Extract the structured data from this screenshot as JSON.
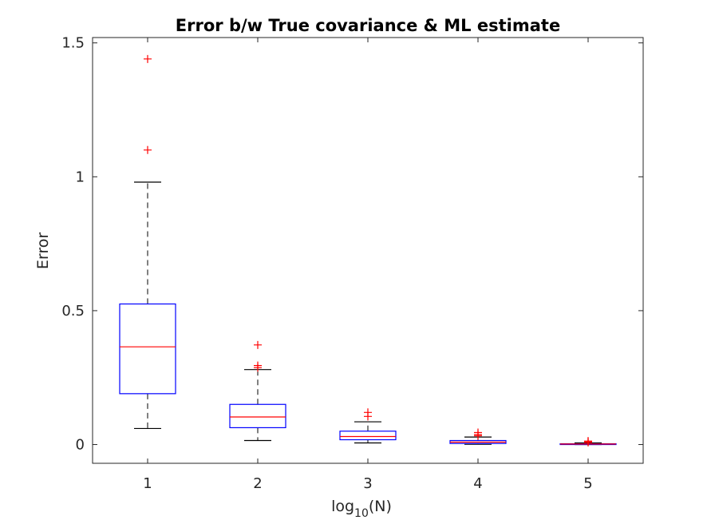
{
  "chart_data": {
    "type": "box",
    "title": "Error b/w True covariance & ML estimate",
    "xlabel": {
      "base": "log",
      "sub": "10",
      "tail": "(N)"
    },
    "ylabel": "Error",
    "xlim": [
      0.5,
      5.5
    ],
    "ylim": [
      -0.07,
      1.52
    ],
    "xticks": [
      1,
      2,
      3,
      4,
      5
    ],
    "xtick_labels": [
      "1",
      "2",
      "3",
      "4",
      "5"
    ],
    "yticks": [
      0,
      0.5,
      1,
      1.5
    ],
    "ytick_labels": [
      "0",
      "0.5",
      "1",
      "1.5"
    ],
    "grid": false,
    "colors": {
      "box": "#0000ff",
      "median": "#ff0000",
      "whisker": "#000000",
      "outlier": "#ff0000",
      "axis": "#262626"
    },
    "boxes": [
      {
        "x": 1,
        "whisker_low": 0.06,
        "q1": 0.19,
        "median": 0.365,
        "q3": 0.525,
        "whisker_high": 0.98,
        "outliers": [
          1.1,
          1.44
        ]
      },
      {
        "x": 2,
        "whisker_low": 0.015,
        "q1": 0.063,
        "median": 0.103,
        "q3": 0.15,
        "whisker_high": 0.28,
        "outliers": [
          0.287,
          0.295,
          0.372
        ]
      },
      {
        "x": 3,
        "whisker_low": 0.006,
        "q1": 0.018,
        "median": 0.03,
        "q3": 0.05,
        "whisker_high": 0.085,
        "outliers": [
          0.105,
          0.12
        ]
      },
      {
        "x": 4,
        "whisker_low": 0.001,
        "q1": 0.004,
        "median": 0.009,
        "q3": 0.015,
        "whisker_high": 0.028,
        "outliers": [
          0.033,
          0.038,
          0.045
        ]
      },
      {
        "x": 5,
        "whisker_low": 0.0,
        "q1": 0.001,
        "median": 0.002,
        "q3": 0.003,
        "whisker_high": 0.006,
        "outliers": [
          0.008,
          0.01,
          0.013
        ]
      }
    ]
  }
}
